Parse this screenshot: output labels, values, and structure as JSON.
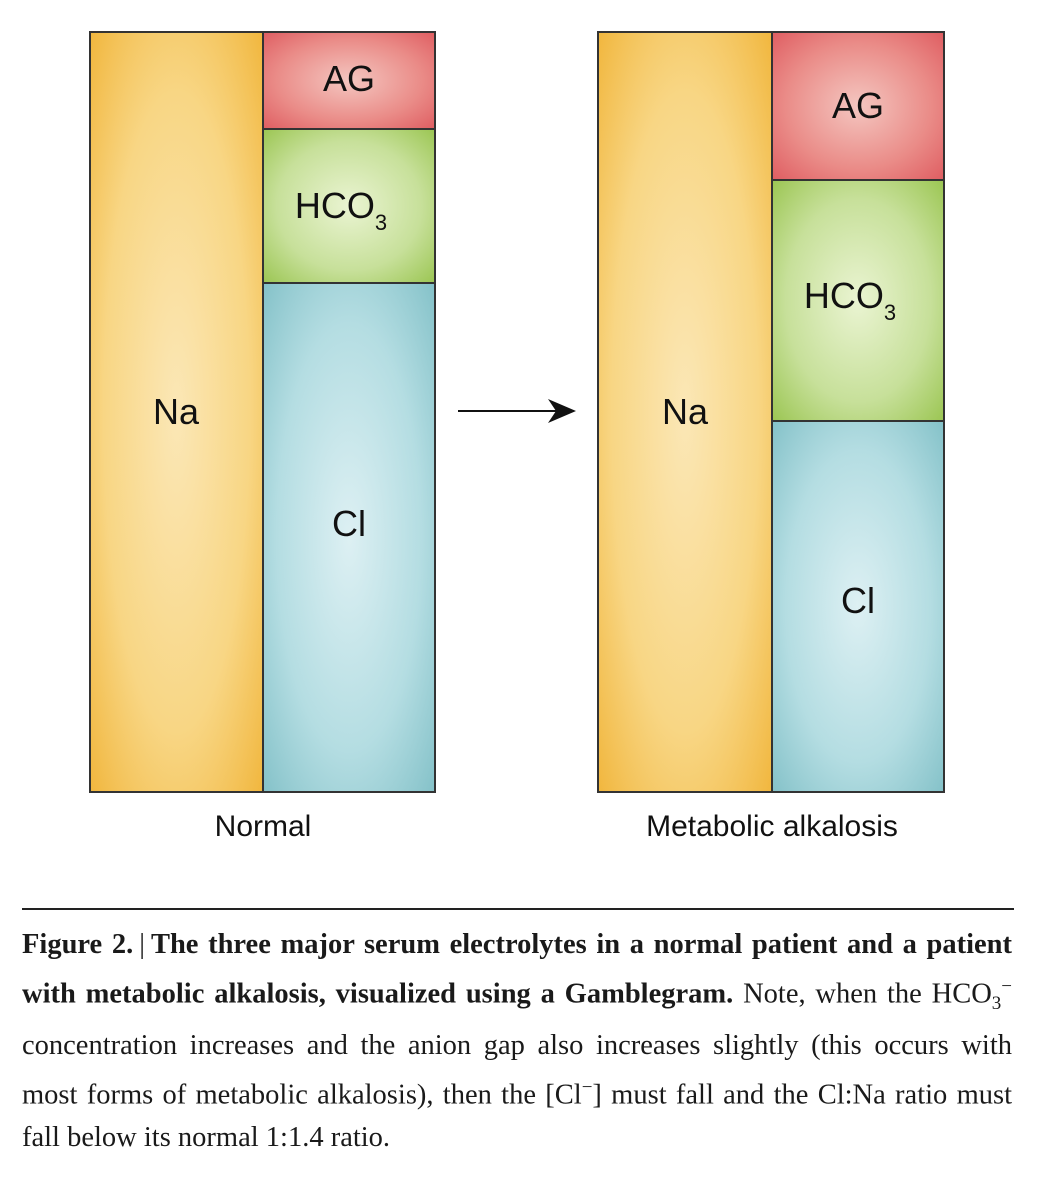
{
  "panels": [
    {
      "label": "Normal",
      "segments": {
        "na": "Na",
        "ag": "AG",
        "hco3_main": "HCO",
        "hco3_sub": "3",
        "cl": "Cl"
      }
    },
    {
      "label": "Metabolic alkalosis",
      "segments": {
        "na": "Na",
        "ag": "AG",
        "hco3_main": "HCO",
        "hco3_sub": "3",
        "cl": "Cl"
      }
    }
  ],
  "colors": {
    "na": "#f5c04f",
    "ag": "#e0666a",
    "hco3": "#a6cc5e",
    "cl": "#8cc6cc",
    "outline": "#333333"
  },
  "caption": {
    "figure_label": "Figure 2.",
    "separator": "|",
    "title": "The three major serum electrolytes in a normal patient and a patient with metabolic alkalosis, visualized using a Gamblegram.",
    "body_part1": "Note, when the HCO",
    "body_sub": "3",
    "body_sup": "−",
    "body_part2": " concentration increases and the anion gap also increases slightly (this occurs with most forms of metabolic alkalosis), then the [Cl",
    "body_sup2": "−",
    "body_part3": "] must fall and the Cl:Na ratio must fall below its normal 1:1.4 ratio."
  }
}
